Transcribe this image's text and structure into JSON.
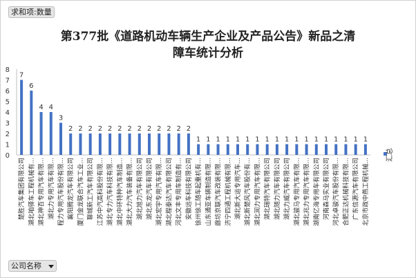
{
  "pivot": {
    "values_field": "求和项:数量",
    "axis_field": "公司名称"
  },
  "title_line1": "第377批《道路机动车辆生产企业及产品公告》新品之清",
  "title_line2": "障车统计分析",
  "colors": {
    "bar": "#4472c4",
    "label": "#333333",
    "grid": "#d9d9d9"
  },
  "chart_data": {
    "type": "bar",
    "title": "第377批《道路机动车辆生产企业及产品公告》新品之清障车统计分析",
    "ylim": [
      0,
      8
    ],
    "yticks": [
      0,
      1,
      2,
      3,
      4,
      5,
      6,
      7,
      8
    ],
    "grid": false,
    "legend_position": "right",
    "data_labels": true,
    "categories": [
      "楚胜汽车集团有限公司",
      "湖北咱驿车工程机械有...",
      "湖北神百专用汽车有限...",
      "湖北力专用汽车有限...",
      "程力专用汽车股份有限...",
      "襄阳腾龙汽车有限公司",
      "厦门金龙联合汽车工业...",
      "聊城新工汽车有限公司",
      "江苏中汽高科股份有限...",
      "湖北专力汽车科技有限...",
      "湖北中环特种汽车制造...",
      "湖北大力汽车装备有限...",
      "湖北旭力汽车有限公司",
      "湖北东龙汽车有限公司",
      "湖北宏宇专用汽车有限...",
      "湖北程泰达汽车有限公司",
      "河北文丰专用车制造有...",
      "安徽远车科技有限公司",
      "徐州徐工随车起重机有...",
      "山东通亚车辆制造有限...",
      "廊坊京联汽车改装有限...",
      "济宁四通工程机械有限...",
      "湖北新大运专用汽车...",
      "湖北新楚风汽车股份有...",
      "湖北润力专用汽车有限...",
      "湖北瑞特汽车有限公司",
      "湖北随力汽车有限公司",
      "湖北力威汽车有限公司",
      "湖北骏马专用汽车有限...",
      "湖北兆力专用汽车有限...",
      "湖南亿海专用车有限公司",
      "河南森马实业有限公司",
      "河北卓骏汽车股份有限...",
      "合肥正达机械科技有限...",
      "广东信源汽车有限公司",
      "北京市政中燕工程机械..."
    ],
    "series": [
      {
        "name": "汇总",
        "values": [
          7,
          6,
          4,
          4,
          3,
          2,
          2,
          2,
          2,
          2,
          2,
          2,
          2,
          2,
          2,
          2,
          2,
          2,
          1,
          1,
          1,
          1,
          1,
          1,
          1,
          1,
          1,
          1,
          1,
          1,
          1,
          1,
          1,
          1,
          1,
          1
        ]
      }
    ]
  }
}
